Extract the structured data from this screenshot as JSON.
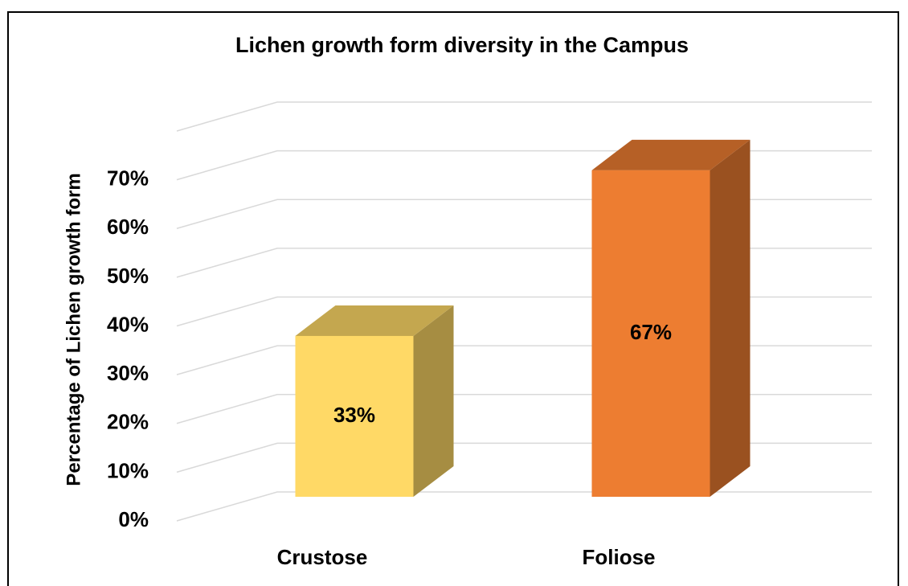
{
  "chart_data": {
    "type": "bar3d",
    "title": "Lichen growth form diversity in the Campus",
    "y_axis_label": "Percentage of Lichen growth form",
    "categories": [
      "Crustose",
      "Foliose"
    ],
    "values": [
      33,
      67
    ],
    "value_labels": [
      "33%",
      "67%"
    ],
    "colors": [
      "#ffd966",
      "#ed7d31"
    ],
    "ylim": [
      0,
      80
    ],
    "yticks": [
      {
        "value": 0,
        "label": "0%"
      },
      {
        "value": 10,
        "label": "10%"
      },
      {
        "value": 20,
        "label": "20%"
      },
      {
        "value": 30,
        "label": "30%"
      },
      {
        "value": 40,
        "label": "40%"
      },
      {
        "value": 50,
        "label": "50%"
      },
      {
        "value": 60,
        "label": "60%"
      },
      {
        "value": 70,
        "label": "70%"
      }
    ],
    "grid": true
  }
}
